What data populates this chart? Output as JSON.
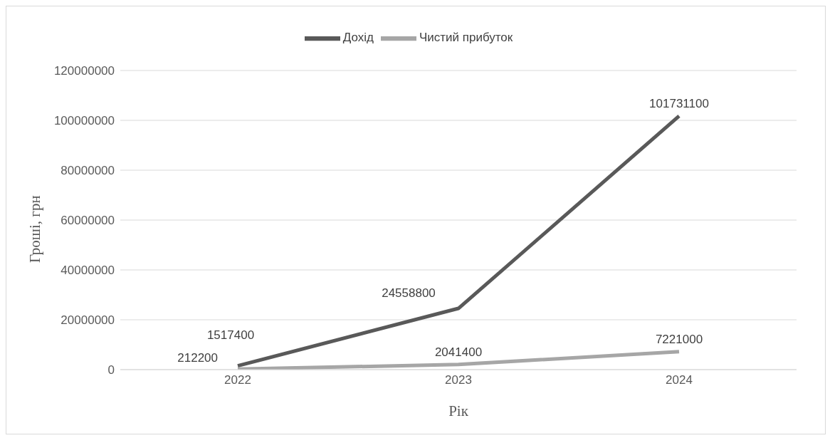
{
  "chart_data": {
    "type": "line",
    "xlabel": "Рік",
    "ylabel": "Гроші, грн",
    "categories": [
      "2022",
      "2023",
      "2024"
    ],
    "series": [
      {
        "name": "Дохід",
        "color": "#595959",
        "values": [
          1517400,
          24558800,
          101731100
        ]
      },
      {
        "name": "Чистий прибуток",
        "color": "#a6a6a6",
        "values": [
          212200,
          2041400,
          7221000
        ]
      }
    ],
    "ylim": [
      0,
      120000000
    ],
    "yticks": [
      0,
      20000000,
      40000000,
      60000000,
      80000000,
      100000000,
      120000000
    ],
    "grid": "y",
    "legend": "top",
    "marker": "none",
    "line_style": "solid",
    "data_labels": true
  }
}
